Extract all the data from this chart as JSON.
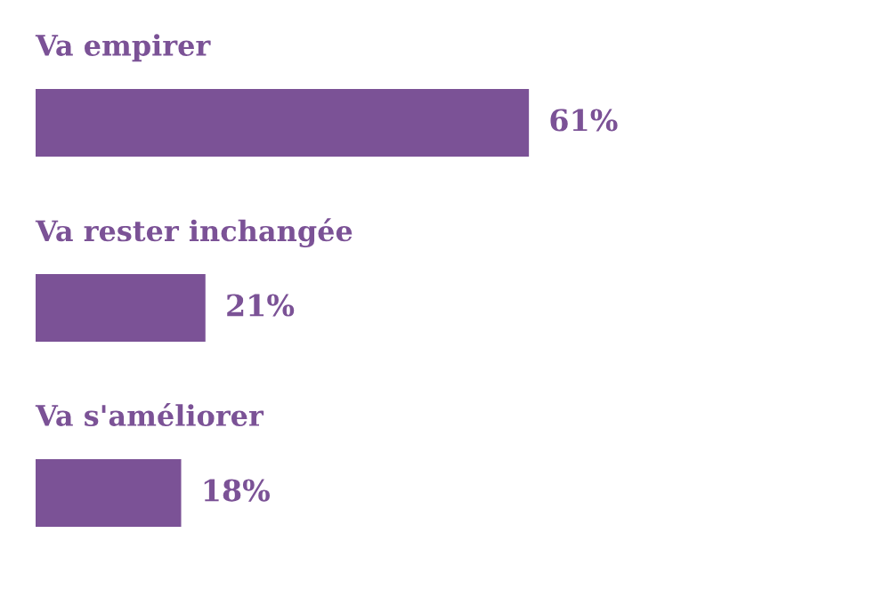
{
  "chart_data": {
    "type": "bar",
    "orientation": "horizontal",
    "categories": [
      "Va empirer",
      "Va rester inchangée",
      "Va s'améliorer"
    ],
    "values": [
      61,
      21,
      18
    ],
    "value_labels": [
      "61%",
      "21%",
      "18%"
    ],
    "color": "#7b5296"
  }
}
